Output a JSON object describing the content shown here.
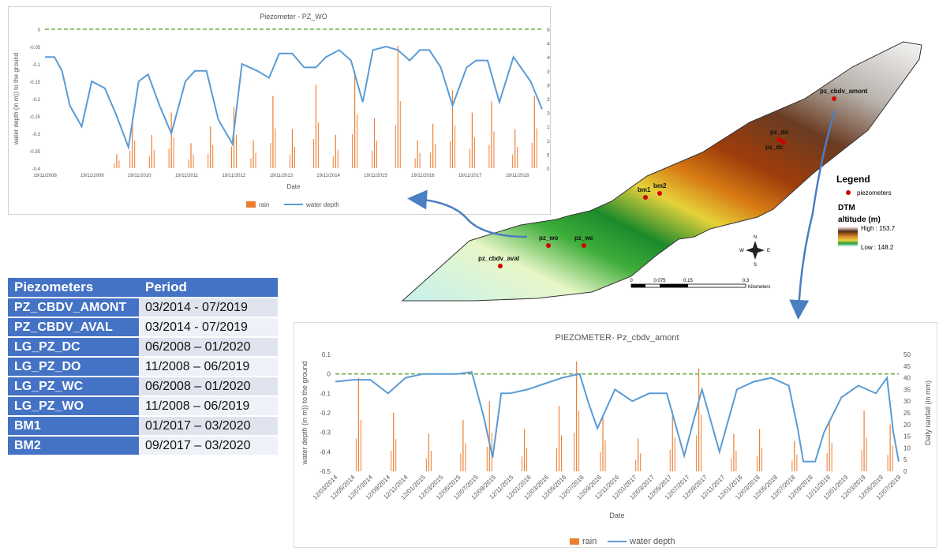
{
  "chart_data": [
    {
      "type": "line",
      "title": "Piezometer  - PZ_WO",
      "xlabel": "Date",
      "ylabel_left": "water depth (in m)) to the ground",
      "ylabel_right": "Daily rainfall (in mm)",
      "y_left_ticks": [
        "0",
        "-0.05",
        "-0.1",
        "-0.15",
        "-0.2",
        "-0.25",
        "-0.3",
        "-0.35",
        "-0.4"
      ],
      "y_right_ticks": [
        "50",
        "45",
        "40",
        "35",
        "30",
        "25",
        "20",
        "15",
        "10",
        "5",
        "0"
      ],
      "ylim_left": [
        -0.4,
        0
      ],
      "ylim_right": [
        0,
        50
      ],
      "x_tick_labels": [
        "19/11/2008",
        "19/11/2009",
        "19/11/2010",
        "19/11/2011",
        "19/11/2012",
        "19/11/2013",
        "19/11/2014",
        "19/11/2015",
        "19/11/2016",
        "19/11/2017",
        "19/11/2018"
      ],
      "legend": [
        "rain",
        "water depth"
      ],
      "legend_position": "bottom",
      "series": [
        {
          "name": "water depth",
          "color": "#5b9bd5",
          "x": [
            "2008-11-19",
            "2009-02-01",
            "2009-04-01",
            "2009-06-01",
            "2009-09-01",
            "2009-11-19",
            "2010-03-01",
            "2010-06-01",
            "2010-09-01",
            "2010-11-19",
            "2011-02-01",
            "2011-05-01",
            "2011-08-01",
            "2011-11-19",
            "2012-02-01",
            "2012-05-01",
            "2012-08-01",
            "2012-11-19",
            "2013-02-01",
            "2013-06-01",
            "2013-09-01",
            "2013-11-19",
            "2014-03-01",
            "2014-06-01",
            "2014-09-01",
            "2014-11-19",
            "2015-03-01",
            "2015-06-01",
            "2015-09-01",
            "2015-11-19",
            "2016-03-01",
            "2016-06-01",
            "2016-09-01",
            "2016-11-19",
            "2017-02-01",
            "2017-05-01",
            "2017-08-01",
            "2017-11-19",
            "2018-02-01",
            "2018-05-01",
            "2018-08-01",
            "2018-11-19",
            "2019-04-01",
            "2019-06-30"
          ],
          "values": [
            -0.08,
            -0.08,
            -0.12,
            -0.22,
            -0.28,
            -0.15,
            -0.17,
            -0.25,
            -0.34,
            -0.15,
            -0.13,
            -0.22,
            -0.3,
            -0.15,
            -0.12,
            -0.12,
            -0.26,
            -0.33,
            -0.1,
            -0.12,
            -0.14,
            -0.07,
            -0.07,
            -0.11,
            -0.11,
            -0.08,
            -0.06,
            -0.09,
            -0.21,
            -0.06,
            -0.05,
            -0.06,
            -0.09,
            -0.06,
            -0.06,
            -0.11,
            -0.22,
            -0.11,
            -0.09,
            -0.09,
            -0.21,
            -0.08,
            -0.15,
            -0.23
          ]
        },
        {
          "name": "rain",
          "color": "#ed7d31",
          "x": [
            "2010-06-01",
            "2010-10-01",
            "2011-03-01",
            "2011-08-01",
            "2012-01-01",
            "2012-06-01",
            "2012-12-01",
            "2013-05-01",
            "2013-10-01",
            "2014-03-01",
            "2014-09-01",
            "2015-02-01",
            "2015-07-01",
            "2015-12-01",
            "2016-06-01",
            "2016-11-01",
            "2017-03-01",
            "2017-08-01",
            "2018-01-01",
            "2018-06-01",
            "2018-12-01",
            "2019-05-01"
          ],
          "values": [
            5,
            18,
            12,
            20,
            9,
            15,
            22,
            10,
            26,
            14,
            30,
            12,
            35,
            18,
            44,
            10,
            16,
            28,
            20,
            24,
            14,
            26
          ]
        },
        {
          "name": "0 m reference",
          "color": "#70ad47",
          "x": [
            "2008-11-19",
            "2019-06-30"
          ],
          "values": [
            0,
            0
          ]
        }
      ]
    },
    {
      "type": "line",
      "title": "PIEZOMETER- Pz_cbdv_amont",
      "xlabel": "Date",
      "ylabel_left": "water depth (in m)) to the ground",
      "ylabel_right": "Daily rainfall (in mm)",
      "y_left_ticks": [
        "0.1",
        "0",
        "-0.1",
        "-0.2",
        "-0.3",
        "-0.4",
        "-0.5"
      ],
      "y_right_ticks": [
        "50",
        "45",
        "40",
        "35",
        "30",
        "25",
        "20",
        "15",
        "10",
        "5",
        "0"
      ],
      "ylim_left": [
        -0.5,
        0.1
      ],
      "ylim_right": [
        0,
        50
      ],
      "x_tick_labels": [
        "12/03/2014",
        "12/05/2014",
        "12/07/2014",
        "12/09/2014",
        "12/11/2014",
        "12/01/2015",
        "12/03/2015",
        "12/05/2015",
        "12/07/2015",
        "12/09/2015",
        "12/11/2015",
        "12/01/2016",
        "12/03/2016",
        "12/05/2016",
        "12/07/2016",
        "12/09/2016",
        "12/11/2016",
        "12/01/2017",
        "12/03/2017",
        "12/05/2017",
        "12/07/2017",
        "12/09/2017",
        "12/11/2017",
        "12/01/2018",
        "12/03/2018",
        "12/05/2018",
        "12/07/2018",
        "12/09/2018",
        "12/11/2018",
        "12/01/2019",
        "12/03/2019",
        "12/05/2019",
        "12/07/2019"
      ],
      "legend": [
        "rain",
        "water depth"
      ],
      "legend_position": "bottom",
      "series": [
        {
          "name": "water depth",
          "color": "#5b9bd5",
          "x": [
            "2014-03-12",
            "2014-05-12",
            "2014-07-12",
            "2014-09-12",
            "2014-11-12",
            "2015-01-12",
            "2015-03-12",
            "2015-05-12",
            "2015-07-01",
            "2015-08-12",
            "2015-09-12",
            "2015-10-12",
            "2015-11-12",
            "2016-01-12",
            "2016-03-12",
            "2016-05-12",
            "2016-07-12",
            "2016-08-12",
            "2016-09-12",
            "2016-11-12",
            "2017-01-12",
            "2017-03-12",
            "2017-05-12",
            "2017-07-12",
            "2017-09-12",
            "2017-11-12",
            "2018-01-12",
            "2018-03-12",
            "2018-05-12",
            "2018-07-12",
            "2018-08-12",
            "2018-09-01",
            "2018-10-12",
            "2018-11-12",
            "2019-01-12",
            "2019-03-12",
            "2019-05-12",
            "2019-06-20",
            "2019-07-12",
            "2019-07-31"
          ],
          "values": [
            -0.04,
            -0.03,
            -0.03,
            -0.1,
            -0.02,
            0.0,
            0.0,
            0.0,
            0.01,
            -0.22,
            -0.43,
            -0.1,
            -0.1,
            -0.08,
            -0.05,
            -0.02,
            0.0,
            -0.15,
            -0.28,
            -0.08,
            -0.14,
            -0.1,
            -0.1,
            -0.42,
            -0.08,
            -0.4,
            -0.08,
            -0.04,
            -0.02,
            -0.06,
            -0.28,
            -0.45,
            -0.45,
            -0.3,
            -0.12,
            -0.06,
            -0.1,
            -0.02,
            -0.3,
            -0.45
          ]
        },
        {
          "name": "rain",
          "color": "#ed7d31",
          "x": [
            "2014-06-01",
            "2014-10-01",
            "2015-02-01",
            "2015-06-01",
            "2015-09-01",
            "2016-01-01",
            "2016-05-01",
            "2016-07-01",
            "2016-10-01",
            "2017-02-01",
            "2017-06-01",
            "2017-09-01",
            "2018-01-01",
            "2018-04-01",
            "2018-08-01",
            "2018-12-01",
            "2019-04-01",
            "2019-07-01"
          ],
          "values": [
            40,
            25,
            16,
            22,
            30,
            18,
            28,
            47,
            24,
            14,
            26,
            44,
            16,
            18,
            13,
            22,
            26,
            20
          ]
        },
        {
          "name": "0 m reference",
          "color": "#70ad47",
          "x": [
            "2014-03-12",
            "2019-07-31"
          ],
          "values": [
            0,
            0
          ]
        }
      ]
    }
  ],
  "table": {
    "headers": [
      "Piezometers",
      "Period"
    ],
    "rows": [
      [
        "PZ_CBDV_AMONT",
        "03/2014 - 07/2019"
      ],
      [
        "PZ_CBDV_AVAL",
        "03/2014 - 07/2019"
      ],
      [
        "LG_PZ_DC",
        "06/2008 – 01/2020"
      ],
      [
        "LG_PZ_DO",
        "11/2008 – 06/2019"
      ],
      [
        "LG_PZ_WC",
        "06/2008 – 01/2020"
      ],
      [
        "LG_PZ_WO",
        "11/2008 – 06/2019"
      ],
      [
        "BM1",
        "01/2017 – 03/2020"
      ],
      [
        "BM2",
        "09/2017 – 03/2020"
      ]
    ]
  },
  "map": {
    "point_labels": [
      "pz_cbdv_amont",
      "pz_do",
      "pz_dc",
      "bm1",
      "bm2",
      "pz_wo",
      "pz_wc",
      "pz_cbdv_aval"
    ],
    "legend_title": "Legend",
    "legend_points_label": "piezometers",
    "dtm_label": "DTM",
    "altitude_label": "altitude (m)",
    "high_label": "High : 153.7",
    "low_label": "Low : 148.2",
    "scale_ticks": [
      "0",
      "0.075",
      "0.15",
      "0.3"
    ],
    "scale_unit": "Kilometers",
    "compass": [
      "N",
      "E",
      "S",
      "W"
    ],
    "colors": {
      "points": "#d40000",
      "arrow": "#4a7fc1"
    }
  }
}
